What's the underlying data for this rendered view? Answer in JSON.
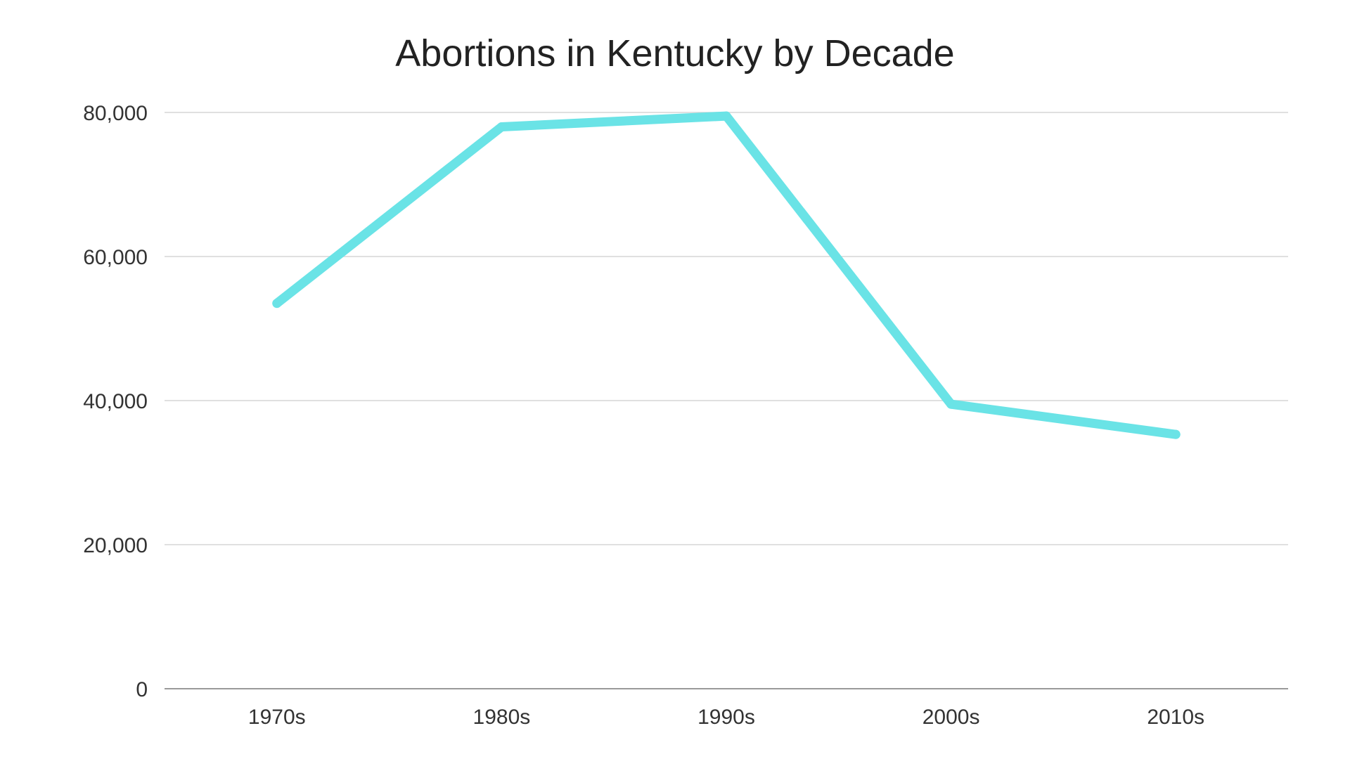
{
  "chart_data": {
    "type": "line",
    "title": "Abortions in Kentucky by Decade",
    "xlabel": "",
    "ylabel": "",
    "categories": [
      "1970s",
      "1980s",
      "1990s",
      "2000s",
      "2010s"
    ],
    "series": [
      {
        "values": [
          53500,
          78000,
          79500,
          39500,
          35300
        ],
        "color": "#6ae3e6"
      }
    ],
    "ylim": [
      0,
      80000
    ],
    "yticks": [
      0,
      20000,
      40000,
      60000,
      80000
    ],
    "ytick_labels": [
      "0",
      "20,000",
      "40,000",
      "60,000",
      "80,000"
    ],
    "grid": true,
    "legend": "none"
  }
}
